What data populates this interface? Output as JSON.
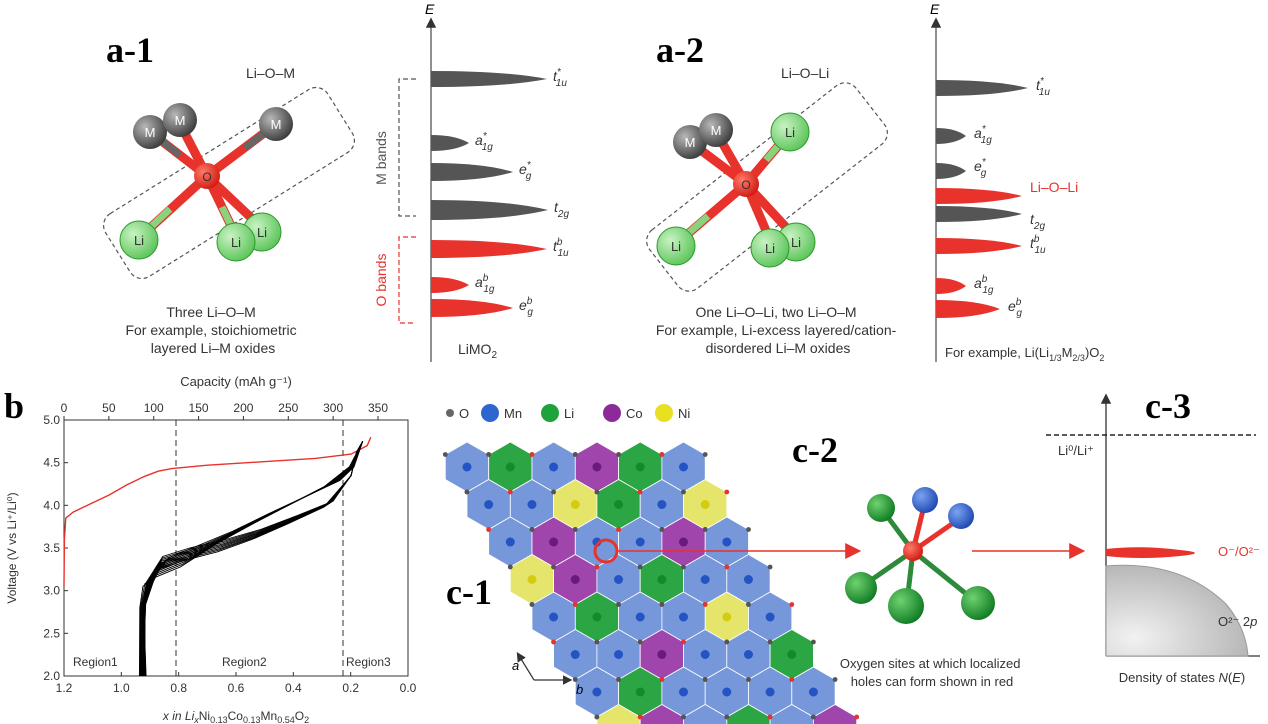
{
  "panel_labels": {
    "a1": "a-1",
    "a2": "a-2",
    "b": "b",
    "c1": "c-1",
    "c2": "c-2",
    "c3": "c-3"
  },
  "a1": {
    "bond_label": "Li–O–M",
    "atoms": {
      "M": "M",
      "O": "O",
      "Li": "Li"
    },
    "caption": [
      "Three Li–O–M",
      "For example, stoichiometric",
      "layered Li–M oxides"
    ]
  },
  "a_dos_left": {
    "axis": "E",
    "m_bands": "M bands",
    "o_bands": "O bands",
    "level_labels": {
      "t1u_star": {
        "base": "t",
        "sub": "1u",
        "sup": "*"
      },
      "a1g_star": {
        "base": "a",
        "sub": "1g",
        "sup": "*"
      },
      "eg_star": {
        "base": "e",
        "sub": "g",
        "sup": "*"
      },
      "t2g": {
        "base": "t",
        "sub": "2g",
        "sup": ""
      },
      "t1u_b": {
        "base": "t",
        "sub": "1u",
        "sup": "b"
      },
      "a1g_b": {
        "base": "a",
        "sub": "1g",
        "sup": "b"
      },
      "eg_b": {
        "base": "e",
        "sub": "g",
        "sup": "b"
      }
    },
    "compound": {
      "base": "LiMO",
      "sub": "2"
    }
  },
  "a2": {
    "bond_label": "Li–O–Li",
    "atoms": {
      "M": "M",
      "O": "O",
      "Li": "Li"
    },
    "caption": [
      "One Li–O–Li, two Li–O–M",
      "For example, Li-excess layered/cation-",
      "disordered Li–M oxides"
    ]
  },
  "a_dos_right": {
    "axis": "E",
    "li_o_li": "Li–O–Li",
    "compound_prefix": "For example, ",
    "compound": [
      "Li(Li",
      "1/3",
      "M",
      "2/3",
      ")O",
      "2"
    ]
  },
  "b": {
    "top_axis_label": "Capacity (mAh g⁻¹)",
    "top_ticks": [
      "0",
      "50",
      "100",
      "150",
      "200",
      "250",
      "300",
      "350"
    ],
    "y_axis_label": "Voltage (V vs Li⁺/Li⁰)",
    "y_ticks": [
      "2.0",
      "2.5",
      "3.0",
      "3.5",
      "4.0",
      "4.5",
      "5.0"
    ],
    "x_ticks": [
      "1.2",
      "1.0",
      "0.8",
      "0.6",
      "0.4",
      "0.2",
      "0.0"
    ],
    "x_axis_label": [
      "x in Li",
      "x",
      "Ni",
      "0.13",
      "Co",
      "0.13",
      "Mn",
      "0.54",
      "O",
      "2"
    ],
    "regions": [
      "Region1",
      "Region2",
      "Region3"
    ],
    "colors": {
      "first_cycle": "#e8322c",
      "later_cycles": "#000000"
    }
  },
  "c1": {
    "legend": [
      "O",
      "Mn",
      "Li",
      "Co",
      "Ni"
    ],
    "legend_colors": [
      "#666666",
      "#2e66d0",
      "#1ea23a",
      "#8c2a9a",
      "#e8e020"
    ],
    "axes": [
      "a",
      "b"
    ]
  },
  "c2": {
    "caption": [
      "Oxygen sites at which localized",
      "holes can form shown in red"
    ]
  },
  "c3": {
    "reference": "Li⁰/Li⁺",
    "hole_band": "O⁻/O²⁻",
    "o2p_prefix": "O²⁻ 2",
    "o2p_italic": "p",
    "x_axis": [
      "Density of states ",
      "N",
      "(",
      "E",
      ")"
    ]
  }
}
